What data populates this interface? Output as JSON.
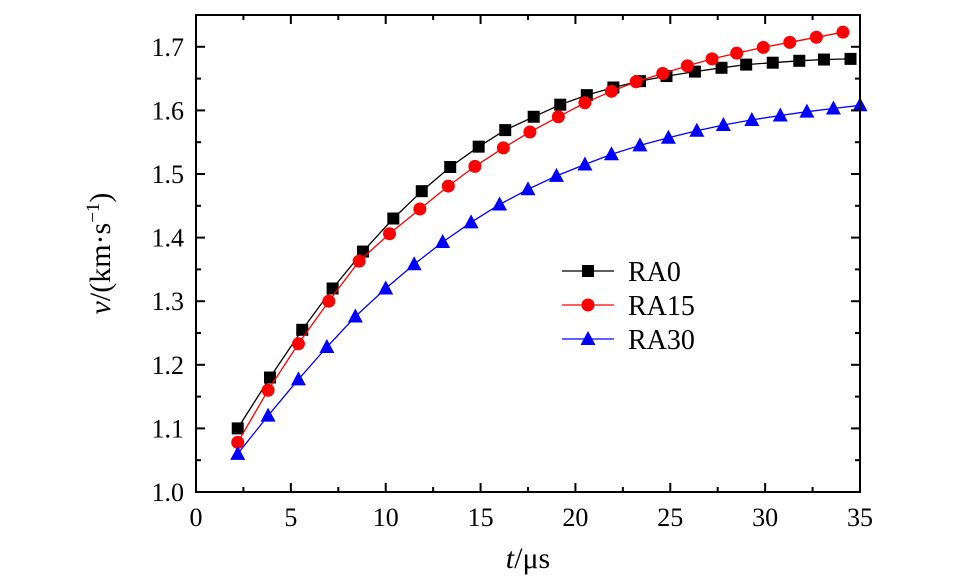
{
  "chart_data": {
    "type": "line",
    "title": "",
    "xlabel_var": "t",
    "xlabel_unit": "/μs",
    "ylabel_var": "v",
    "ylabel_unit": "/(km·s",
    "ylabel_exp": "−1",
    "ylabel_close": ")",
    "xlim": [
      0,
      35
    ],
    "ylim": [
      1.0,
      1.75
    ],
    "xticks": [
      "0",
      "5",
      "10",
      "15",
      "20",
      "25",
      "30",
      "35"
    ],
    "yticks": [
      "1.0",
      "1.1",
      "1.2",
      "1.3",
      "1.4",
      "1.5",
      "1.6",
      "1.7"
    ],
    "grid": false,
    "legend_position": "center-right",
    "series": [
      {
        "name": "RA0",
        "color": "#000000",
        "marker": "square",
        "x": [
          2.2,
          3.9,
          5.6,
          7.2,
          8.8,
          10.4,
          11.9,
          13.4,
          14.9,
          16.3,
          17.8,
          19.2,
          20.6,
          22.0,
          23.4,
          24.8,
          26.3,
          27.7,
          29.0,
          30.4,
          31.8,
          33.1,
          34.5
        ],
        "y": [
          1.1,
          1.18,
          1.255,
          1.32,
          1.378,
          1.43,
          1.473,
          1.511,
          1.543,
          1.569,
          1.59,
          1.609,
          1.624,
          1.636,
          1.646,
          1.654,
          1.661,
          1.667,
          1.672,
          1.675,
          1.678,
          1.68,
          1.681
        ]
      },
      {
        "name": "RA15",
        "color": "#ff0000",
        "marker": "circle",
        "x": [
          2.2,
          3.8,
          5.4,
          7.0,
          8.6,
          10.2,
          11.8,
          13.3,
          14.7,
          16.2,
          17.6,
          19.1,
          20.5,
          21.9,
          23.2,
          24.6,
          25.9,
          27.2,
          28.5,
          29.9,
          31.3,
          32.7,
          34.1
        ],
        "y": [
          1.078,
          1.16,
          1.233,
          1.3,
          1.363,
          1.406,
          1.445,
          1.481,
          1.512,
          1.541,
          1.566,
          1.59,
          1.612,
          1.63,
          1.645,
          1.658,
          1.67,
          1.681,
          1.69,
          1.699,
          1.707,
          1.715,
          1.723
        ]
      },
      {
        "name": "RA30",
        "color": "#0000ff",
        "marker": "triangle",
        "x": [
          2.2,
          3.8,
          5.4,
          6.9,
          8.4,
          10.0,
          11.5,
          13.0,
          14.5,
          16.0,
          17.5,
          19.0,
          20.5,
          21.9,
          23.4,
          24.9,
          26.4,
          27.8,
          29.3,
          30.8,
          32.2,
          33.6,
          35.0
        ],
        "y": [
          1.06,
          1.12,
          1.177,
          1.228,
          1.276,
          1.32,
          1.358,
          1.393,
          1.424,
          1.452,
          1.476,
          1.497,
          1.515,
          1.531,
          1.545,
          1.557,
          1.568,
          1.577,
          1.585,
          1.592,
          1.598,
          1.603,
          1.608
        ]
      }
    ]
  }
}
